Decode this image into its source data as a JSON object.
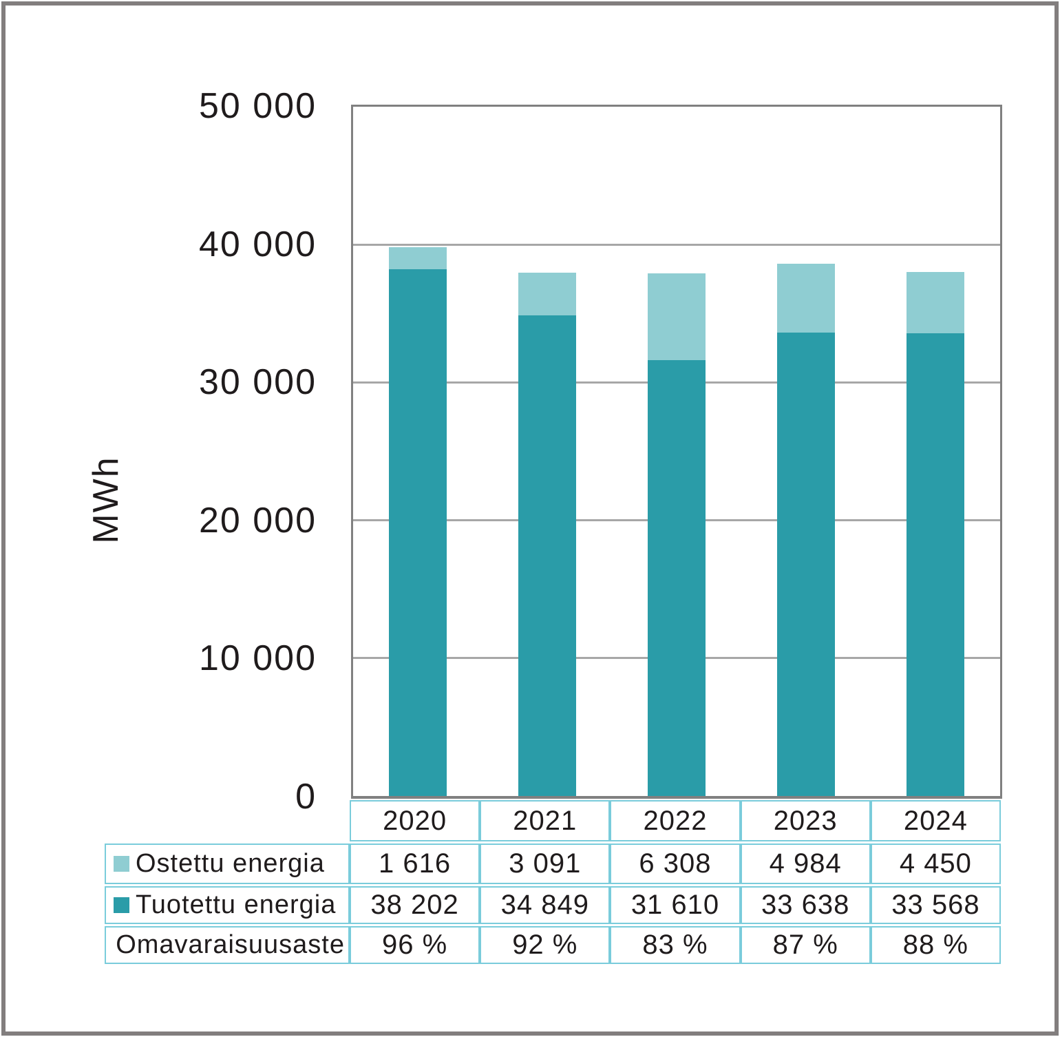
{
  "colors": {
    "produced_bar": "#2a9ca8",
    "purchased_bar": "#8fcdd2",
    "table_border": "#7accdb",
    "plot_border": "#808080",
    "gridline": "#a7a7a7",
    "outer_frame": "#827e7e",
    "text": "#1f1b1c"
  },
  "chart_data": {
    "type": "bar",
    "stacked": true,
    "title": "",
    "ylabel": "MWh",
    "xlabel": "",
    "ylim": [
      0,
      50000
    ],
    "grid": true,
    "legend_position": "table-rows-left",
    "yticks": [
      0,
      10000,
      20000,
      30000,
      40000,
      50000
    ],
    "ytick_labels": [
      "0",
      "10 000",
      "20 000",
      "30 000",
      "40 000",
      "50 000"
    ],
    "categories": [
      "2020",
      "2021",
      "2022",
      "2023",
      "2024"
    ],
    "series": [
      {
        "name": "Ostettu energia",
        "color": "#8fcdd2",
        "stack_position": "top",
        "values": [
          1616,
          3091,
          6308,
          4984,
          4450
        ],
        "labels": [
          "1 616",
          "3 091",
          "6 308",
          "4 984",
          "4 450"
        ]
      },
      {
        "name": "Tuotettu energia",
        "color": "#2a9ca8",
        "stack_position": "bottom",
        "values": [
          38202,
          34849,
          31610,
          33638,
          33568
        ],
        "labels": [
          "38 202",
          "34 849",
          "31 610",
          "33 638",
          "33 568"
        ]
      }
    ],
    "extra_rows": [
      {
        "name": "Omavaraisuusaste",
        "labels": [
          "96 %",
          "92 %",
          "83 %",
          "87 %",
          "88 %"
        ]
      }
    ]
  }
}
